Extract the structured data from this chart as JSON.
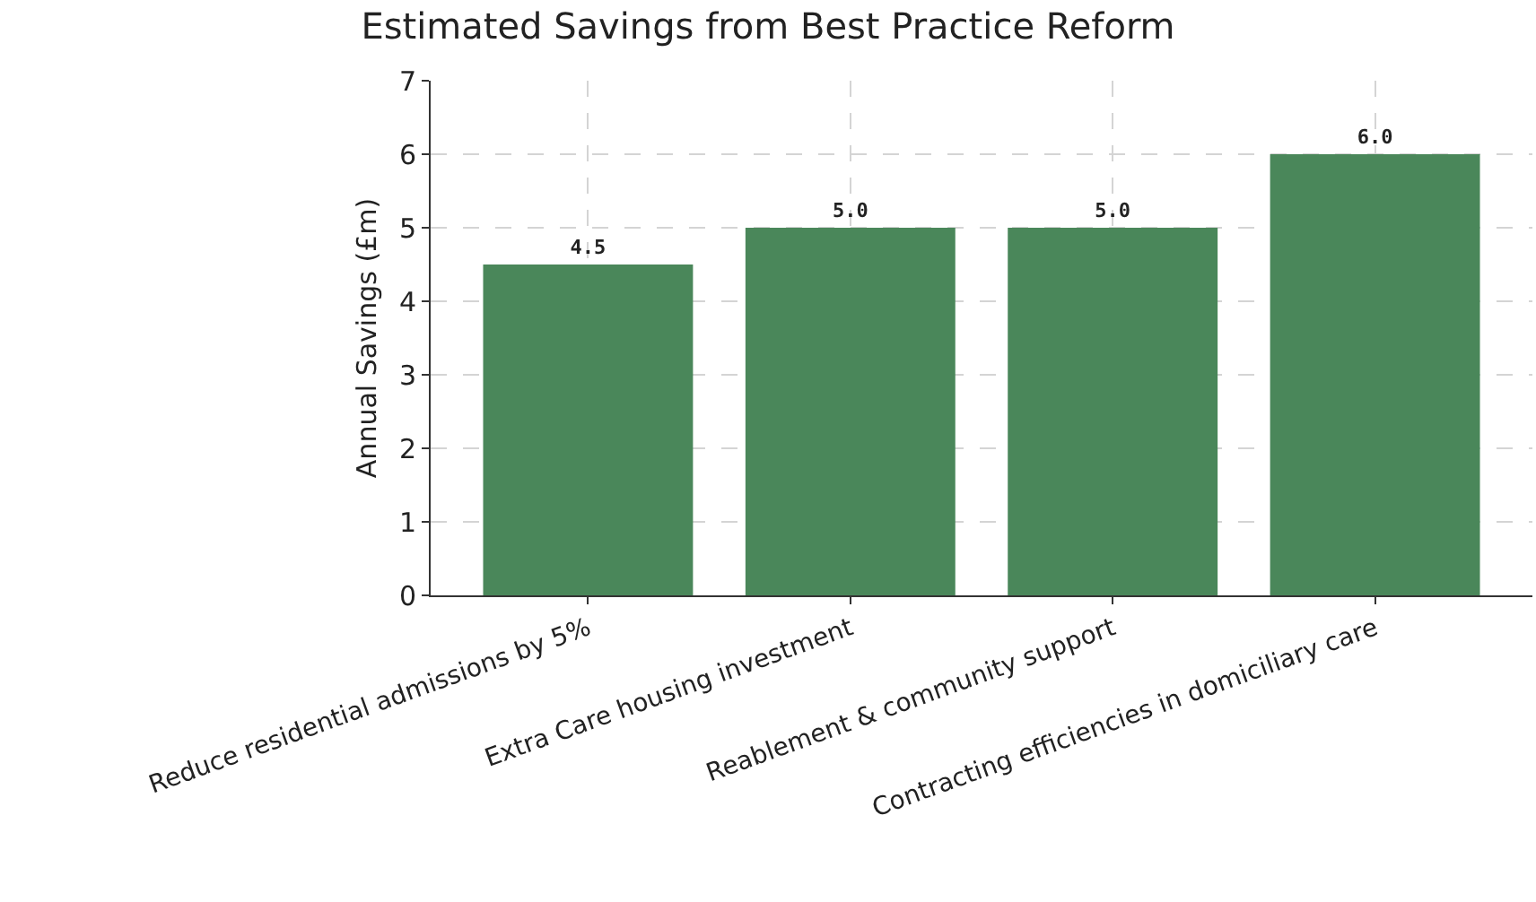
{
  "chart_data": {
    "type": "bar",
    "title": "Estimated Savings from Best Practice Reform",
    "ylabel": "Annual Savings (£m)",
    "categories": [
      "Reduce residential admissions by 5%",
      "Extra Care housing investment",
      "Reablement & community support",
      "Contracting efficiencies in domiciliary care"
    ],
    "values": [
      4.5,
      5.0,
      5.0,
      6.0
    ],
    "value_labels": [
      "4.5",
      "5.0",
      "5.0",
      "6.0"
    ],
    "color": "#4a875a",
    "ylim": [
      0,
      7
    ],
    "yticks": [
      0,
      1,
      2,
      3,
      4,
      5,
      6,
      7
    ],
    "grid": true
  }
}
